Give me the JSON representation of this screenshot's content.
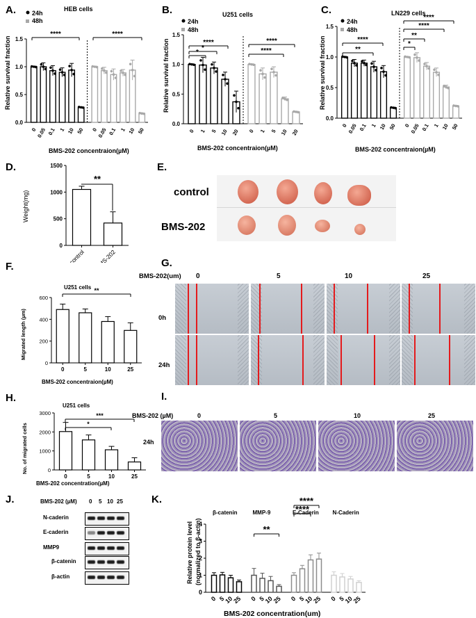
{
  "panel_letters": {
    "A": "A.",
    "B": "B.",
    "C": "C.",
    "D": "D.",
    "E": "E.",
    "F": "F.",
    "G": "G.",
    "H": "H.",
    "I": "I.",
    "J": "J.",
    "K": "K."
  },
  "colors": {
    "bar_24h": "#000000",
    "bar_48h": "#a8a8a8",
    "red_line": "#e41a1c",
    "stain": "#5b3e96",
    "tumor": "#d9705c"
  },
  "chart_data": [
    {
      "id": "A",
      "type": "bar",
      "title": "HEB cells",
      "ylabel": "Relative survival fraction",
      "xlabel": "BMS-202 concentraion(µM)",
      "ylim": [
        0,
        1.5
      ],
      "yticks": [
        "0.0",
        "0.5",
        "1.0",
        "1.5"
      ],
      "legend": [
        "24h",
        "48h"
      ],
      "categories": [
        "0",
        "0.05",
        "0.1",
        "1",
        "10",
        "50"
      ],
      "series": [
        {
          "name": "24h",
          "values": [
            1.0,
            1.0,
            0.93,
            0.9,
            0.94,
            0.27
          ]
        },
        {
          "name": "48h",
          "values": [
            1.0,
            0.93,
            0.86,
            0.89,
            0.94,
            0.16
          ]
        }
      ],
      "errors": [
        [
          0.01,
          0.07,
          0.09,
          0.08,
          0.12,
          0.01
        ],
        [
          0.01,
          0.06,
          0.1,
          0.06,
          0.18,
          0.01
        ]
      ],
      "sig": [
        "****",
        "****"
      ]
    },
    {
      "id": "B",
      "type": "bar",
      "title": "U251 cells",
      "ylabel": "Relative survival fraction",
      "xlabel": "BMS-202 concentraion(µM)",
      "ylim": [
        0,
        1.5
      ],
      "yticks": [
        "0.0",
        "0.5",
        "1.0",
        "1.5"
      ],
      "legend": [
        "24h",
        "48h"
      ],
      "categories": [
        "0",
        "1",
        "5",
        "10",
        "20"
      ],
      "series": [
        {
          "name": "24h",
          "values": [
            1.0,
            0.99,
            0.94,
            0.75,
            0.37
          ]
        },
        {
          "name": "48h",
          "values": [
            1.0,
            0.84,
            0.87,
            0.42,
            0.2
          ]
        }
      ],
      "errors": [
        [
          0.01,
          0.13,
          0.1,
          0.12,
          0.18
        ],
        [
          0.01,
          0.1,
          0.09,
          0.03,
          0.01
        ]
      ],
      "sig": [
        "*",
        "*",
        "****",
        "****",
        "****"
      ]
    },
    {
      "id": "C",
      "type": "bar",
      "title": "LN229 cells",
      "ylabel": "Relative survival fraction",
      "xlabel": "BMS-202 concentraion(µM)",
      "ylim": [
        0,
        1.5
      ],
      "yticks": [
        "0.0",
        "0.5",
        "1.0",
        "1.5"
      ],
      "legend": [
        "24h",
        "48h"
      ],
      "categories": [
        "0",
        "0.05",
        "0.1",
        "1",
        "10",
        "50"
      ],
      "series": [
        {
          "name": "24h",
          "values": [
            1.0,
            0.9,
            0.9,
            0.84,
            0.76,
            0.17
          ]
        },
        {
          "name": "48h",
          "values": [
            1.0,
            0.99,
            0.85,
            0.75,
            0.51,
            0.2
          ]
        }
      ],
      "errors": [
        [
          0.01,
          0.06,
          0.05,
          0.09,
          0.1,
          0.01
        ],
        [
          0.01,
          0.08,
          0.06,
          0.07,
          0.03,
          0.01
        ]
      ],
      "sig": [
        "**",
        "****",
        "*",
        "**",
        "****",
        "****"
      ]
    },
    {
      "id": "D",
      "type": "bar",
      "ylabel": "Weight(mg)",
      "ylim": [
        0,
        1500
      ],
      "yticks": [
        "0",
        "500",
        "1000",
        "1500"
      ],
      "categories": [
        "control",
        "BMS-202"
      ],
      "values": [
        1050,
        420
      ],
      "errors": [
        60,
        210
      ],
      "sig": "**"
    },
    {
      "id": "F",
      "type": "bar",
      "title": "U251 cells",
      "ylabel": "Migrated length (µm)",
      "xlabel": "BMS-202 concentraion(µM)",
      "ylim": [
        0,
        600
      ],
      "yticks": [
        "0",
        "200",
        "400",
        "600"
      ],
      "categories": [
        "0",
        "5",
        "10",
        "25"
      ],
      "values": [
        490,
        460,
        380,
        298
      ],
      "errors": [
        50,
        35,
        45,
        70
      ],
      "sig": "**"
    },
    {
      "id": "H",
      "type": "bar",
      "title": "U251 cells",
      "ylabel": "No. of migrated cells",
      "xlabel": "BMS-202 concentration(µM)",
      "ylim": [
        0,
        3000
      ],
      "yticks": [
        "0",
        "1000",
        "2000",
        "3000"
      ],
      "categories": [
        "0",
        "5",
        "10",
        "25"
      ],
      "values": [
        2020,
        1580,
        1060,
        420
      ],
      "errors": [
        480,
        260,
        180,
        220
      ],
      "sig": [
        "***",
        "*"
      ]
    },
    {
      "id": "K",
      "type": "bar",
      "ylabel": "Relative protein level\n(normalized to β-actin)",
      "xlabel": "BMS-202 concentration(um)",
      "ylim": [
        0,
        4
      ],
      "yticks": [
        "0",
        "1",
        "2",
        "3",
        "4"
      ],
      "groups": [
        "β-catenin",
        "MMP-9",
        "E-Caderin",
        "N-Caderin"
      ],
      "categories": [
        "0",
        "5",
        "10",
        "25"
      ],
      "series": [
        {
          "name": "β-catenin",
          "values": [
            1.0,
            1.02,
            0.85,
            0.62
          ]
        },
        {
          "name": "MMP-9",
          "values": [
            1.0,
            0.82,
            0.68,
            0.35
          ]
        },
        {
          "name": "E-Caderin",
          "values": [
            1.0,
            1.38,
            1.9,
            1.95
          ]
        },
        {
          "name": "N-Caderin",
          "values": [
            1.0,
            0.9,
            0.78,
            0.58
          ]
        }
      ],
      "errors": [
        [
          0.15,
          0.15,
          0.15,
          0.1
        ],
        [
          0.4,
          0.3,
          0.25,
          0.1
        ],
        [
          0.15,
          0.2,
          0.3,
          0.35
        ],
        [
          0.2,
          0.2,
          0.15,
          0.1
        ]
      ],
      "sig": [
        "**",
        "****",
        "****"
      ]
    }
  ],
  "panel_E": {
    "row1": "control",
    "row2": "BMS-202"
  },
  "panel_G": {
    "header": "BMS-202(um)",
    "cols": [
      "0",
      "5",
      "10",
      "25"
    ],
    "rows": [
      "0h",
      "24h"
    ]
  },
  "panel_I": {
    "header": "BMS-202 (µM)",
    "cols": [
      "0",
      "5",
      "10",
      "25"
    ],
    "rows": [
      "24h"
    ]
  },
  "panel_J": {
    "header": "BMS-202 (µM)",
    "cols": [
      "0",
      "5",
      "10",
      "25"
    ],
    "rows": [
      "N-caderin",
      "E-caderin",
      "MMP9",
      "β-catenin",
      "β-actin"
    ]
  }
}
